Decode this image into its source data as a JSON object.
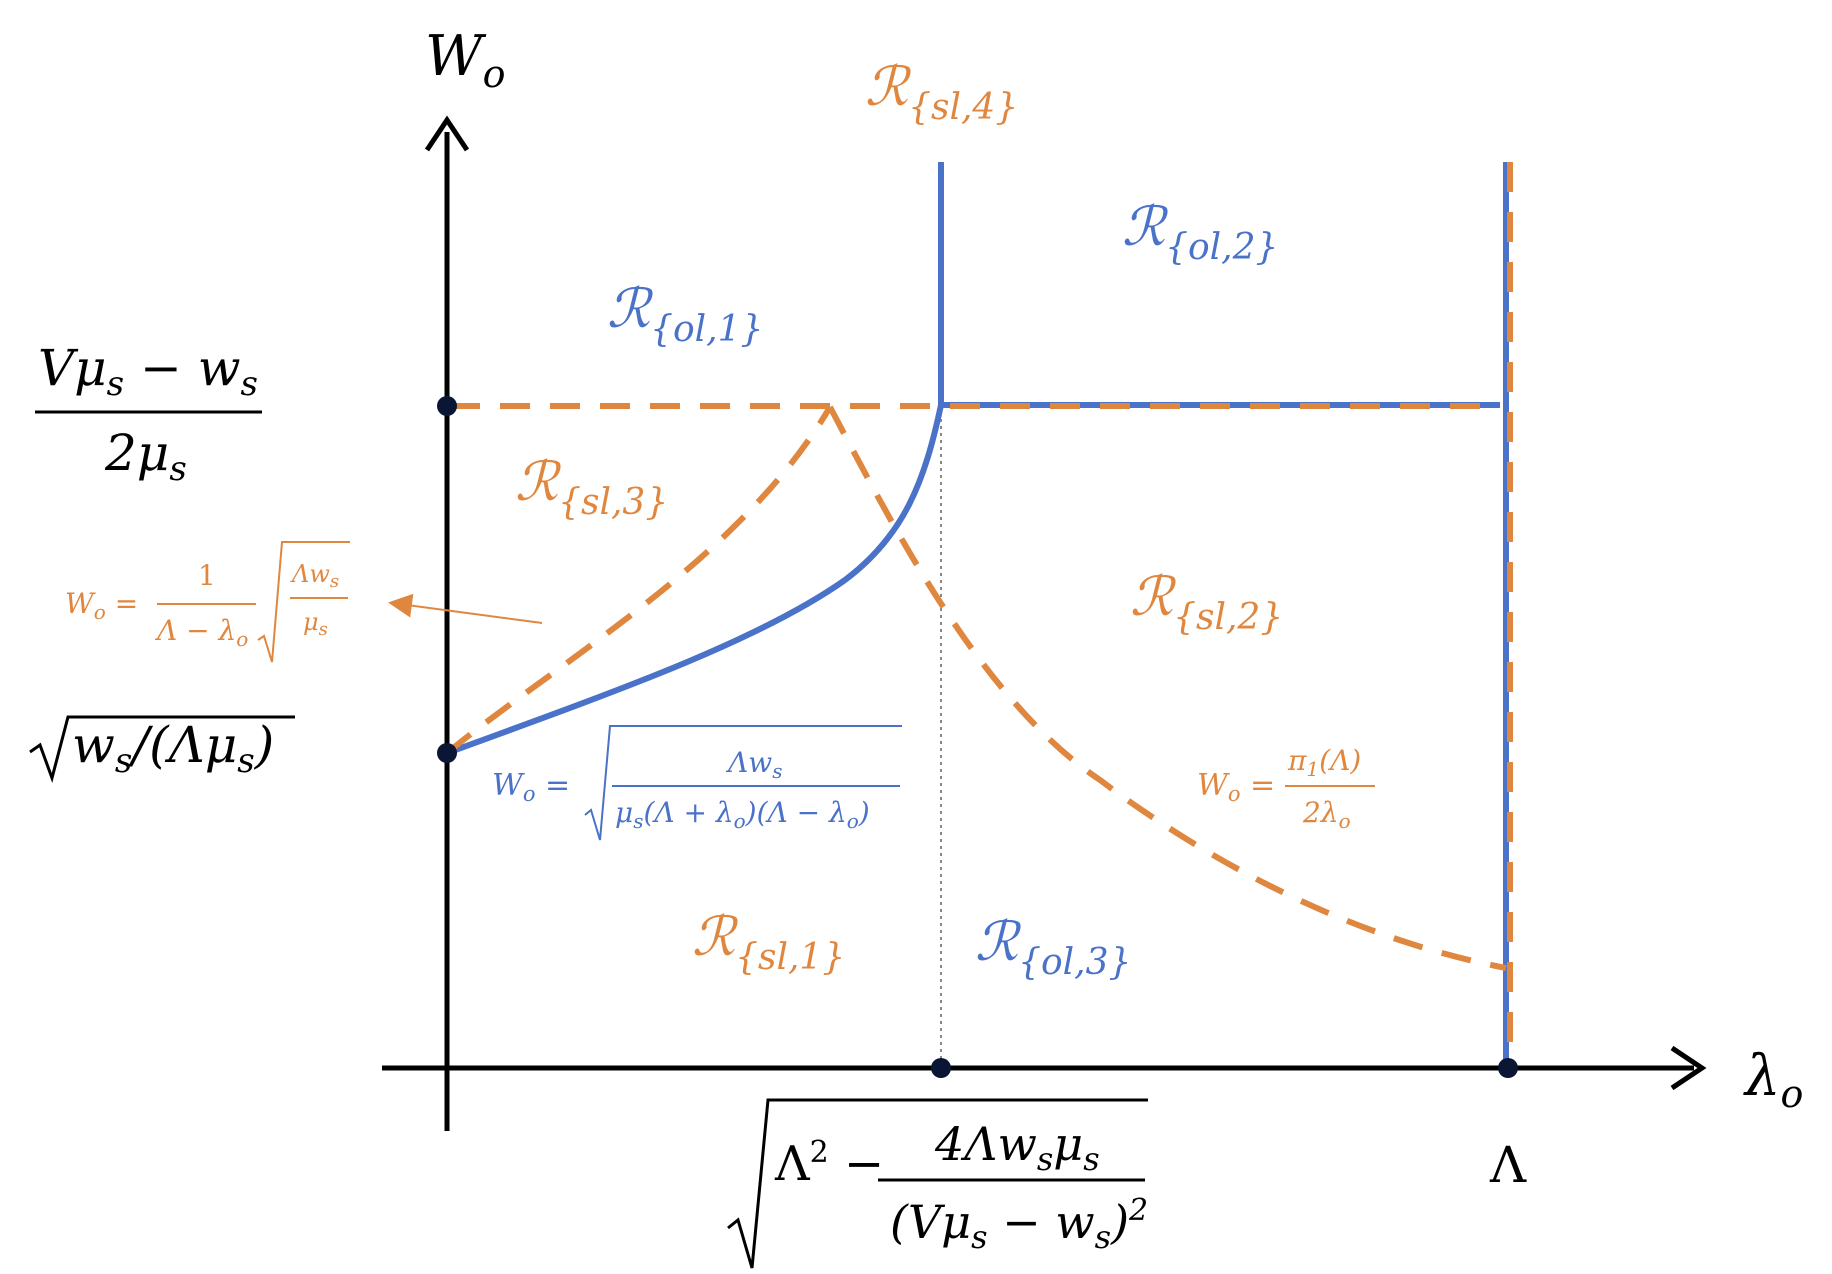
{
  "axes": {
    "y_label": "W",
    "y_label_sub": "o",
    "x_label": "λ",
    "x_label_sub": "o"
  },
  "ticks": {
    "y_top": {
      "num": "Vμ",
      "num_sub": "s",
      "num_tail": " − w",
      "num_tail_sub": "s",
      "den": "2μ",
      "den_sub": "s"
    },
    "y_low": {
      "text_a": "w",
      "sub_a": "s",
      "text_b": "/(Λμ",
      "sub_b": "s",
      "text_c": ")"
    },
    "x_mid": {
      "lead": "Λ",
      "sup": "2",
      "minus": " − ",
      "num": "4Λw",
      "num_sub1": "s",
      "num_mid": "μ",
      "num_sub2": "s",
      "den": "(Vμ",
      "den_sub1": "s",
      "den_mid": " − w",
      "den_sub2": "s",
      "den_tail": ")",
      "den_sup": "2"
    },
    "x_right": "Λ"
  },
  "regions": [
    {
      "script": "ℛ",
      "sub": "{sl,4}",
      "color": "orange"
    },
    {
      "script": "ℛ",
      "sub": "{ol,2}",
      "color": "blue"
    },
    {
      "script": "ℛ",
      "sub": "{ol,1}",
      "color": "blue"
    },
    {
      "script": "ℛ",
      "sub": "{sl,3}",
      "color": "orange"
    },
    {
      "script": "ℛ",
      "sub": "{sl,2}",
      "color": "orange"
    },
    {
      "script": "ℛ",
      "sub": "{sl,1}",
      "color": "orange"
    },
    {
      "script": "ℛ",
      "sub": "{ol,3}",
      "color": "blue"
    }
  ],
  "formulas": {
    "orange_left": {
      "lhs": "W",
      "lhs_sub": "o",
      "eq": " = ",
      "num": "1",
      "den": "Λ − λ",
      "den_sub": "o",
      "rad_num": "Λw",
      "rad_num_sub": "s",
      "rad_den": "μ",
      "rad_den_sub": "s"
    },
    "blue_mid": {
      "lhs": "W",
      "lhs_sub": "o",
      "eq": " = ",
      "num": "Λw",
      "num_sub": "s",
      "den_a": "μ",
      "den_a_sub": "s",
      "den_b": "(Λ + λ",
      "den_b_sub": "o",
      "den_c": ")(Λ − λ",
      "den_c_sub": "o",
      "den_d": ")"
    },
    "orange_right": {
      "lhs": "W",
      "lhs_sub": "o",
      "eq": " = ",
      "num": "π",
      "num_sub": "1",
      "num_tail": "(Λ)",
      "den": "2λ",
      "den_sub": "o"
    }
  },
  "colors": {
    "orange": "#E0873F",
    "blue": "#4A72C9",
    "axis": "#000000",
    "dot": "#0A1633",
    "dotted": "#888888"
  }
}
